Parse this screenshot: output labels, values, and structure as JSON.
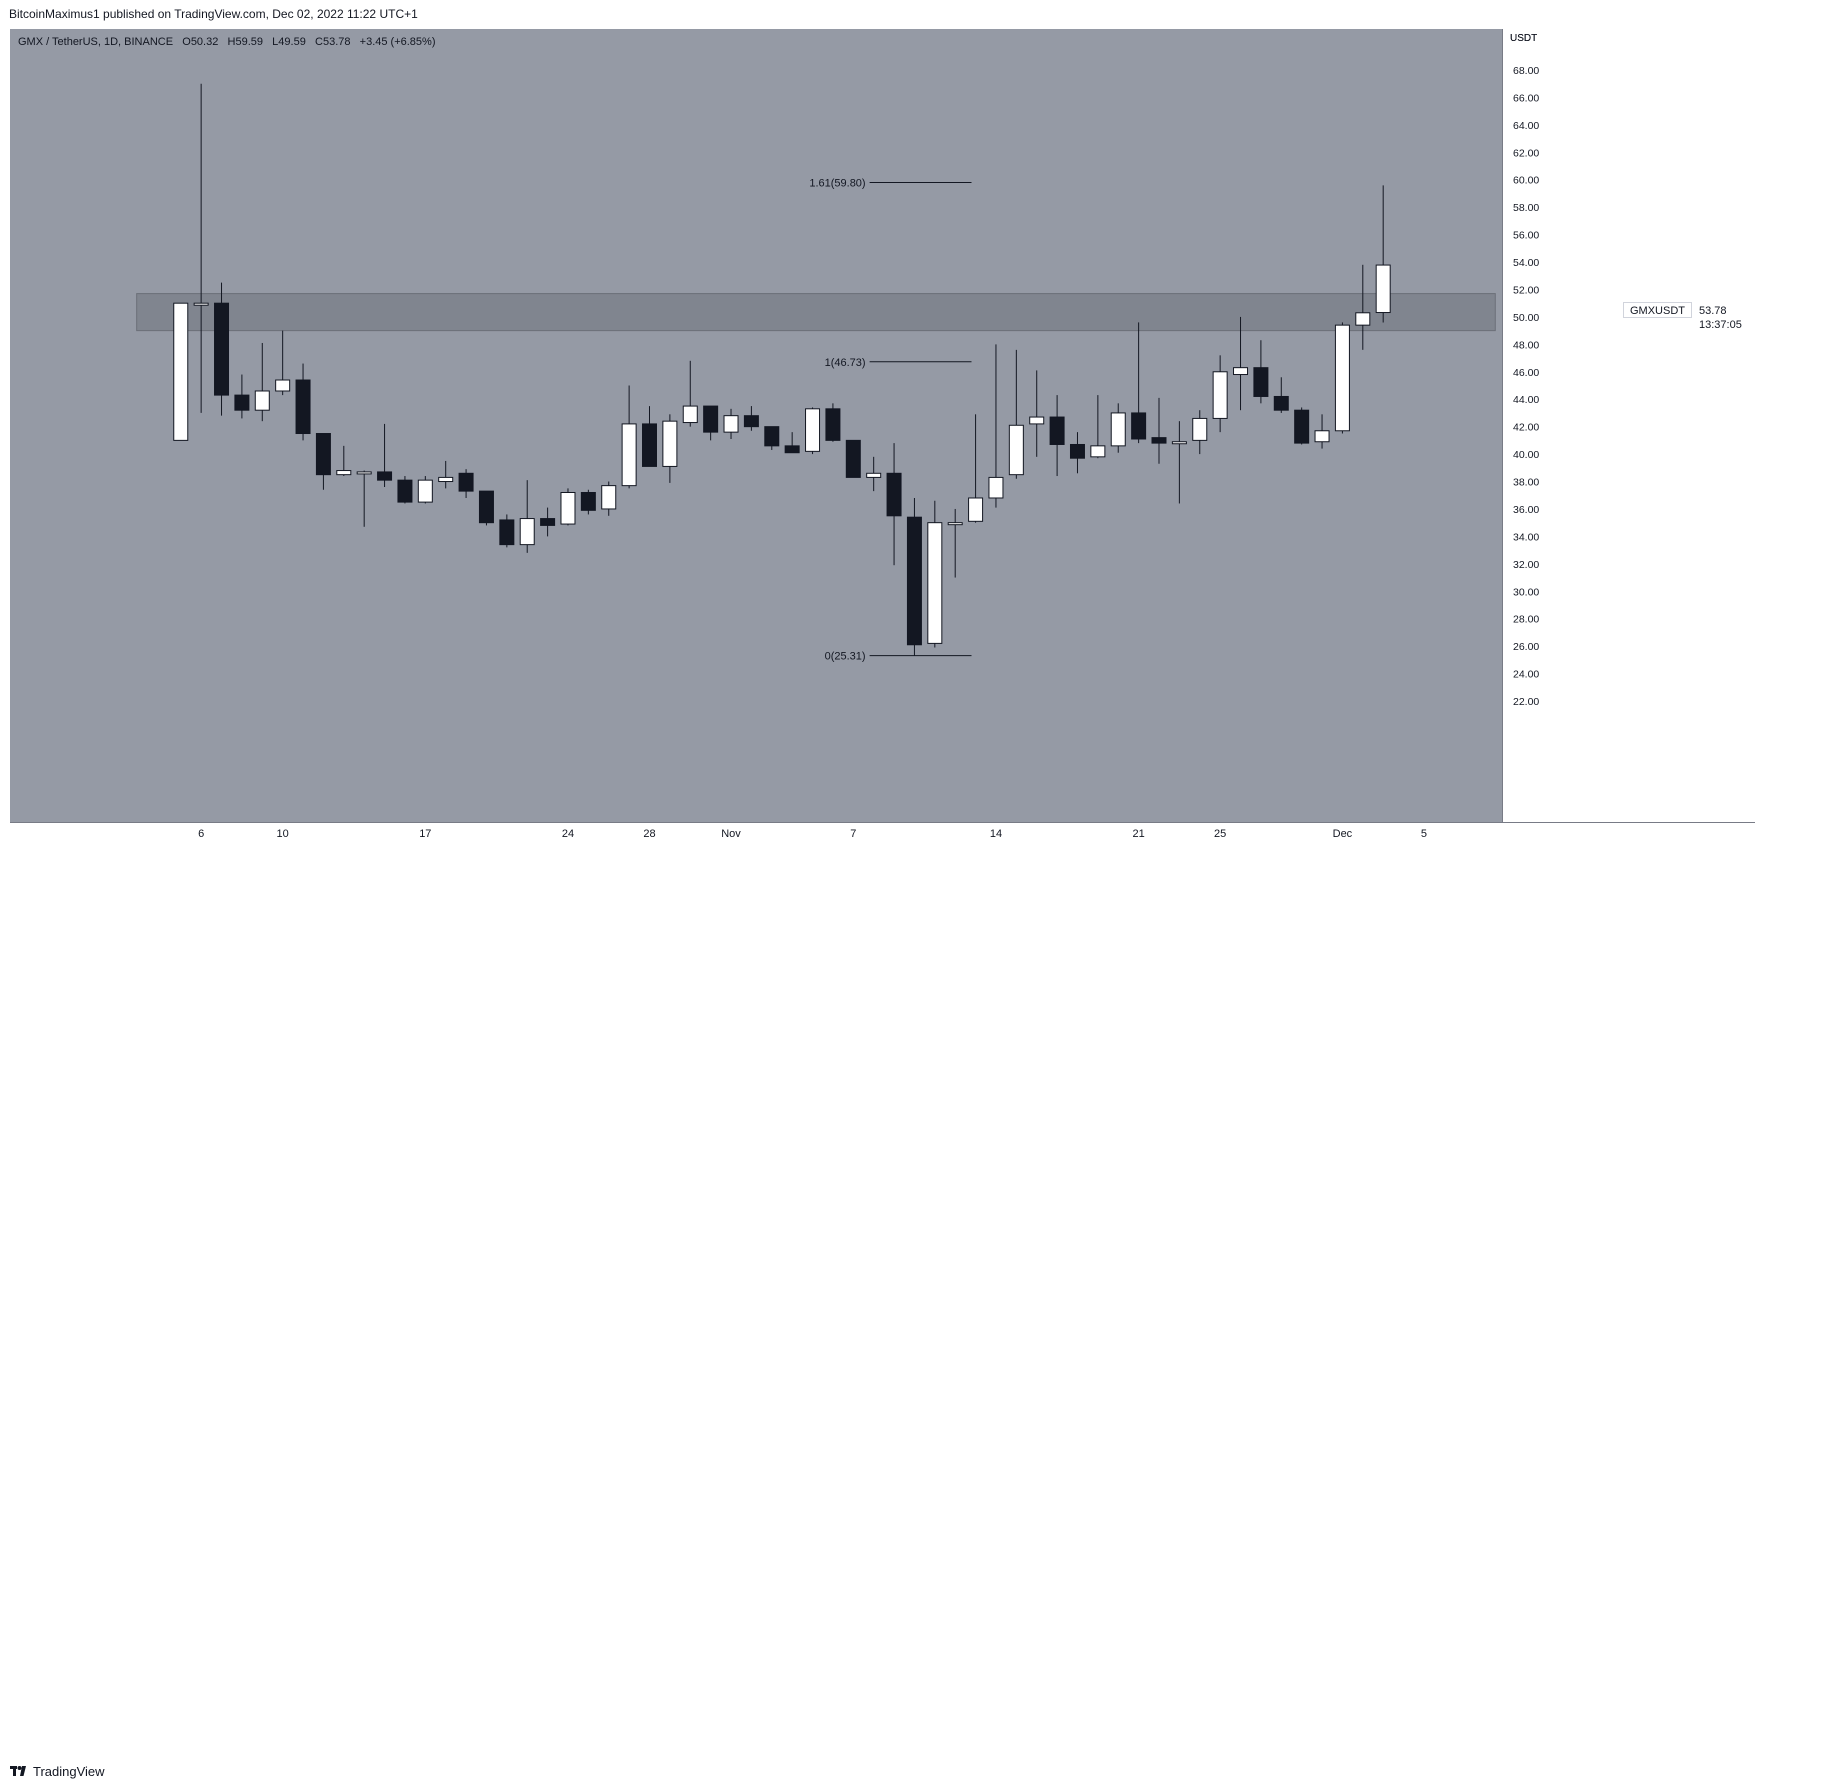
{
  "publisher": "BitcoinMaximus1 published on TradingView.com, Dec 02, 2022 11:22 UTC+1",
  "legend": {
    "symbol": "GMX / TetherUS, 1D, BINANCE",
    "o_label": "O",
    "o_value": "50.32",
    "h_label": "H",
    "h_value": "59.59",
    "l_label": "L",
    "l_value": "49.59",
    "c_label": "C",
    "c_value": "53.78",
    "change": "+3.45 (+6.85%)"
  },
  "price_tag": {
    "ticker": "GMXUSDT",
    "price": "53.78",
    "countdown": "13:37:05"
  },
  "brand": "TradingView",
  "colors": {
    "background": "#959aa5",
    "up_candle": "#ffffff",
    "down_candle": "#131722",
    "wick": "#131722",
    "zone": "#7a7e88"
  },
  "chart_data": {
    "type": "candlestick",
    "currency": "USDT",
    "ylim": [
      20.5,
      70.0
    ],
    "y_ticks": [
      22,
      24,
      26,
      28,
      30,
      32,
      34,
      36,
      38,
      40,
      42,
      44,
      46,
      48,
      50,
      52,
      54,
      56,
      58,
      60,
      62,
      64,
      66,
      68
    ],
    "y_tick_labels": [
      "22.00",
      "24.00",
      "26.00",
      "28.00",
      "30.00",
      "32.00",
      "34.00",
      "36.00",
      "38.00",
      "40.00",
      "42.00",
      "44.00",
      "46.00",
      "48.00",
      "50.00",
      "52.00",
      "54.00",
      "56.00",
      "58.00",
      "60.00",
      "62.00",
      "64.00",
      "66.00",
      "68.00"
    ],
    "x_ticks": [
      {
        "label": "6",
        "day": 3
      },
      {
        "label": "10",
        "day": 7
      },
      {
        "label": "17",
        "day": 14
      },
      {
        "label": "24",
        "day": 21
      },
      {
        "label": "28",
        "day": 25
      },
      {
        "label": "Nov",
        "day": 29
      },
      {
        "label": "7",
        "day": 35
      },
      {
        "label": "14",
        "day": 42
      },
      {
        "label": "21",
        "day": 49
      },
      {
        "label": "25",
        "day": 53
      },
      {
        "label": "Dec",
        "day": 59
      },
      {
        "label": "5",
        "day": 63
      }
    ],
    "x_range": [
      -4.5,
      68.0
    ],
    "candles": [
      {
        "day": 2,
        "o": 41.0,
        "h": 51.0,
        "l": 41.0,
        "c": 51.0
      },
      {
        "day": 3,
        "o": 51.0,
        "h": 67.0,
        "l": 43.0,
        "c": 51.0
      },
      {
        "day": 4,
        "o": 51.0,
        "h": 52.5,
        "l": 42.8,
        "c": 44.3
      },
      {
        "day": 5,
        "o": 44.3,
        "h": 45.8,
        "l": 42.6,
        "c": 43.2
      },
      {
        "day": 6,
        "o": 43.2,
        "h": 48.1,
        "l": 42.4,
        "c": 44.6
      },
      {
        "day": 7,
        "o": 44.6,
        "h": 49.0,
        "l": 44.3,
        "c": 45.4
      },
      {
        "day": 8,
        "o": 45.4,
        "h": 46.6,
        "l": 41.0,
        "c": 41.5
      },
      {
        "day": 9,
        "o": 41.5,
        "h": 41.5,
        "l": 37.4,
        "c": 38.5
      },
      {
        "day": 10,
        "o": 38.5,
        "h": 40.6,
        "l": 38.4,
        "c": 38.8
      },
      {
        "day": 11,
        "o": 38.7,
        "h": 38.8,
        "l": 34.7,
        "c": 38.7
      },
      {
        "day": 12,
        "o": 38.7,
        "h": 42.2,
        "l": 37.6,
        "c": 38.1
      },
      {
        "day": 13,
        "o": 38.1,
        "h": 38.4,
        "l": 36.4,
        "c": 36.5
      },
      {
        "day": 14,
        "o": 36.5,
        "h": 38.4,
        "l": 36.4,
        "c": 38.1
      },
      {
        "day": 15,
        "o": 38.0,
        "h": 39.5,
        "l": 37.5,
        "c": 38.3
      },
      {
        "day": 16,
        "o": 38.6,
        "h": 38.9,
        "l": 36.8,
        "c": 37.3
      },
      {
        "day": 17,
        "o": 37.3,
        "h": 37.3,
        "l": 34.8,
        "c": 35.0
      },
      {
        "day": 18,
        "o": 35.2,
        "h": 35.6,
        "l": 33.2,
        "c": 33.4
      },
      {
        "day": 19,
        "o": 33.4,
        "h": 38.1,
        "l": 32.8,
        "c": 35.3
      },
      {
        "day": 20,
        "o": 35.3,
        "h": 36.1,
        "l": 34.0,
        "c": 34.8
      },
      {
        "day": 21,
        "o": 34.9,
        "h": 37.5,
        "l": 34.8,
        "c": 37.2
      },
      {
        "day": 22,
        "o": 37.2,
        "h": 37.4,
        "l": 35.6,
        "c": 35.9
      },
      {
        "day": 23,
        "o": 36.0,
        "h": 38.0,
        "l": 35.5,
        "c": 37.7
      },
      {
        "day": 24,
        "o": 37.7,
        "h": 45.0,
        "l": 37.5,
        "c": 42.2
      },
      {
        "day": 25,
        "o": 42.2,
        "h": 43.5,
        "l": 39.1,
        "c": 39.1
      },
      {
        "day": 26,
        "o": 39.1,
        "h": 42.9,
        "l": 37.9,
        "c": 42.4
      },
      {
        "day": 27,
        "o": 42.3,
        "h": 46.8,
        "l": 42.0,
        "c": 43.5
      },
      {
        "day": 28,
        "o": 43.5,
        "h": 43.5,
        "l": 41.0,
        "c": 41.6
      },
      {
        "day": 29,
        "o": 41.6,
        "h": 43.3,
        "l": 41.1,
        "c": 42.8
      },
      {
        "day": 30,
        "o": 42.8,
        "h": 43.5,
        "l": 41.7,
        "c": 42.0
      },
      {
        "day": 31,
        "o": 42.0,
        "h": 42.0,
        "l": 40.3,
        "c": 40.6
      },
      {
        "day": 32,
        "o": 40.6,
        "h": 41.6,
        "l": 40.1,
        "c": 40.1
      },
      {
        "day": 33,
        "o": 40.2,
        "h": 43.4,
        "l": 40.0,
        "c": 43.3
      },
      {
        "day": 34,
        "o": 43.3,
        "h": 43.7,
        "l": 40.9,
        "c": 41.0
      },
      {
        "day": 35,
        "o": 41.0,
        "h": 41.0,
        "l": 38.3,
        "c": 38.3
      },
      {
        "day": 36,
        "o": 38.3,
        "h": 39.8,
        "l": 37.3,
        "c": 38.6
      },
      {
        "day": 37,
        "o": 38.6,
        "h": 40.8,
        "l": 31.9,
        "c": 35.5
      },
      {
        "day": 38,
        "o": 35.4,
        "h": 36.8,
        "l": 25.3,
        "c": 26.1
      },
      {
        "day": 39,
        "o": 26.2,
        "h": 36.6,
        "l": 25.9,
        "c": 35.0
      },
      {
        "day": 40,
        "o": 35.0,
        "h": 36.0,
        "l": 31.0,
        "c": 35.0
      },
      {
        "day": 41,
        "o": 35.1,
        "h": 42.9,
        "l": 35.0,
        "c": 36.8
      },
      {
        "day": 42,
        "o": 36.8,
        "h": 48.0,
        "l": 36.1,
        "c": 38.3
      },
      {
        "day": 43,
        "o": 38.5,
        "h": 47.6,
        "l": 38.2,
        "c": 42.1
      },
      {
        "day": 44,
        "o": 42.2,
        "h": 46.1,
        "l": 39.8,
        "c": 42.7
      },
      {
        "day": 45,
        "o": 42.7,
        "h": 44.3,
        "l": 38.4,
        "c": 40.7
      },
      {
        "day": 46,
        "o": 40.7,
        "h": 41.6,
        "l": 38.6,
        "c": 39.7
      },
      {
        "day": 47,
        "o": 39.8,
        "h": 44.3,
        "l": 39.7,
        "c": 40.6
      },
      {
        "day": 48,
        "o": 40.6,
        "h": 43.7,
        "l": 40.1,
        "c": 43.0
      },
      {
        "day": 49,
        "o": 43.0,
        "h": 49.6,
        "l": 40.8,
        "c": 41.1
      },
      {
        "day": 50,
        "o": 41.2,
        "h": 44.1,
        "l": 39.3,
        "c": 40.8
      },
      {
        "day": 51,
        "o": 40.9,
        "h": 42.4,
        "l": 36.4,
        "c": 40.9
      },
      {
        "day": 52,
        "o": 41.0,
        "h": 43.2,
        "l": 40.0,
        "c": 42.6
      },
      {
        "day": 53,
        "o": 42.6,
        "h": 47.2,
        "l": 41.6,
        "c": 46.0
      },
      {
        "day": 54,
        "o": 45.8,
        "h": 50.0,
        "l": 43.2,
        "c": 46.3
      },
      {
        "day": 55,
        "o": 46.3,
        "h": 48.3,
        "l": 43.7,
        "c": 44.2
      },
      {
        "day": 56,
        "o": 44.2,
        "h": 45.6,
        "l": 43.0,
        "c": 43.2
      },
      {
        "day": 57,
        "o": 43.2,
        "h": 43.4,
        "l": 40.7,
        "c": 40.8
      },
      {
        "day": 58,
        "o": 40.9,
        "h": 42.9,
        "l": 40.4,
        "c": 41.7
      },
      {
        "day": 59,
        "o": 41.7,
        "h": 49.6,
        "l": 41.5,
        "c": 49.4
      },
      {
        "day": 60,
        "o": 49.4,
        "h": 53.8,
        "l": 47.6,
        "c": 50.3
      },
      {
        "day": 61,
        "o": 50.32,
        "h": 59.59,
        "l": 49.59,
        "c": 53.78
      }
    ],
    "zone": {
      "low": 49.0,
      "high": 51.7,
      "day_start": 1.8,
      "day_end": 66.5
    },
    "fib_levels": [
      {
        "label": "1.61(59.80)",
        "value": 59.8
      },
      {
        "label": "1(46.73)",
        "value": 46.73
      },
      {
        "label": "0(25.31)",
        "value": 25.31
      }
    ],
    "fib_day_start": 35.8,
    "fib_day_end": 40.8
  }
}
